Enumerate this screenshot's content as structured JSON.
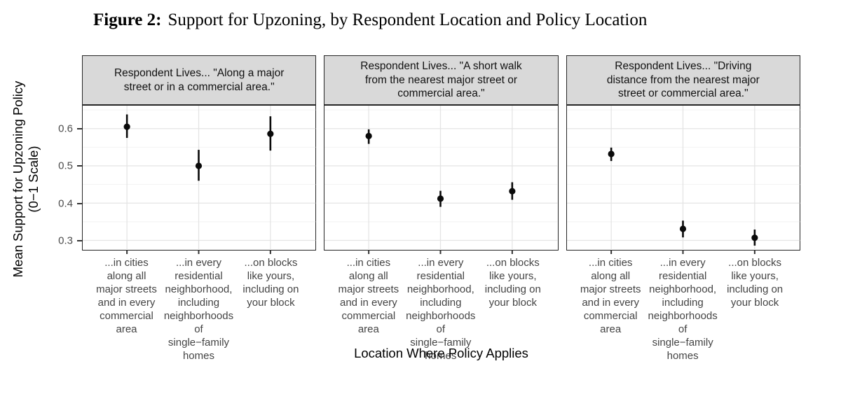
{
  "figure": {
    "label": "Figure 2:",
    "title": "Support for Upzoning, by Respondent Location and Policy Location"
  },
  "chart_data": {
    "type": "scatter",
    "subtype": "point-estimate-with-95ci-pointrange",
    "title": "Figure 2: Support for Upzoning, by Respondent Location and Policy Location",
    "xlabel": "Location Where Policy Applies",
    "ylabel": "Mean Support for Upzoning Policy\n(0−1 Scale)",
    "ylim": [
      0.2765,
      0.6615
    ],
    "yticks": [
      0.6,
      0.5,
      0.4,
      0.3
    ],
    "ytick_labels": [
      "0.6",
      "0.5",
      "0.4",
      "0.3"
    ],
    "minor_gridlines": [
      0.65,
      0.55,
      0.45,
      0.35
    ],
    "grid": "major and minor horizontal, major vertical at categories",
    "legend": "none",
    "point_color": "#0a0a0a",
    "strip_bg": "#d9d9d9",
    "categories": [
      "...in cities\nalong all\nmajor streets\nand in every\ncommercial\narea",
      "...in every\nresidential\nneighborhood,\nincluding\nneighborhoods\nof\nsingle−family\nhomes",
      "...on blocks\nlike yours,\nincluding on\nyour block"
    ],
    "facets": [
      {
        "strip": "Respondent Lives... \"Along a major\nstreet or in a commercial area.\"",
        "points": [
          {
            "estimate": 0.605,
            "ci_low": 0.575,
            "ci_high": 0.638
          },
          {
            "estimate": 0.5,
            "ci_low": 0.46,
            "ci_high": 0.543
          },
          {
            "estimate": 0.586,
            "ci_low": 0.541,
            "ci_high": 0.633
          }
        ]
      },
      {
        "strip": "Respondent Lives... \"A short walk\nfrom the nearest major street or\ncommercial area.\"",
        "points": [
          {
            "estimate": 0.58,
            "ci_low": 0.559,
            "ci_high": 0.598
          },
          {
            "estimate": 0.412,
            "ci_low": 0.39,
            "ci_high": 0.433
          },
          {
            "estimate": 0.432,
            "ci_low": 0.409,
            "ci_high": 0.456
          }
        ]
      },
      {
        "strip": "Respondent Lives... \"Driving\ndistance from the nearest major\nstreet or commercial area.\"",
        "points": [
          {
            "estimate": 0.532,
            "ci_low": 0.513,
            "ci_high": 0.549
          },
          {
            "estimate": 0.331,
            "ci_low": 0.308,
            "ci_high": 0.353
          },
          {
            "estimate": 0.307,
            "ci_low": 0.286,
            "ci_high": 0.329
          }
        ]
      }
    ]
  }
}
